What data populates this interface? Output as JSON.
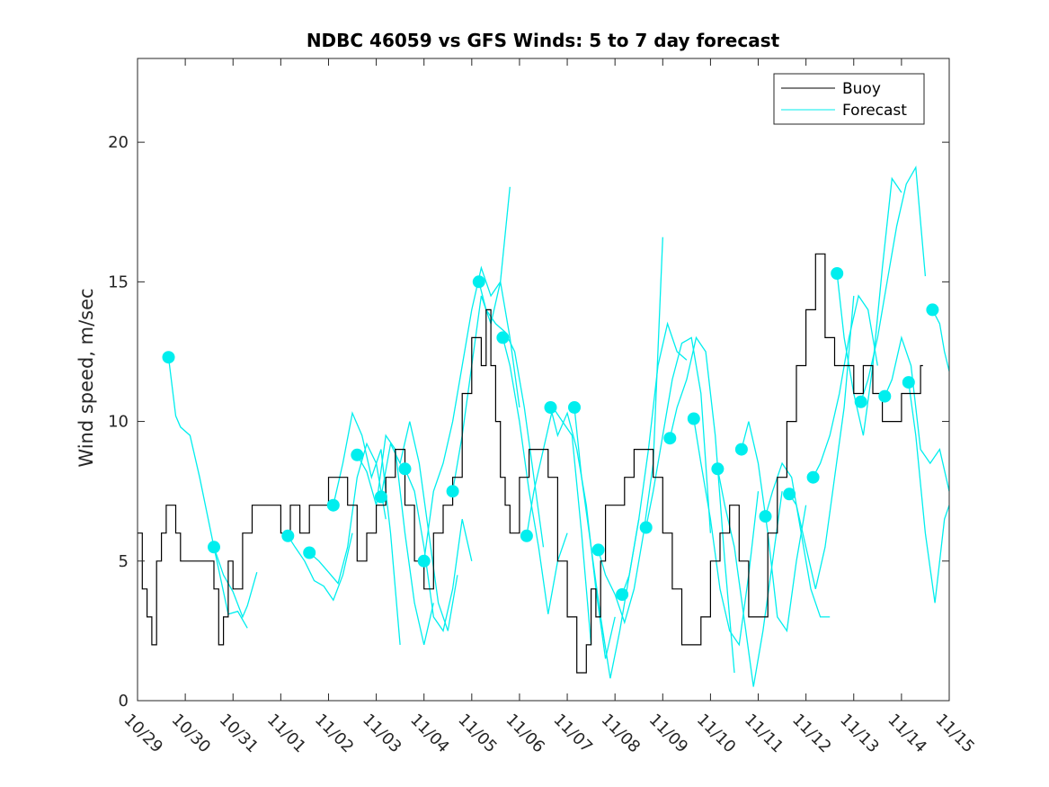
{
  "chart_data": {
    "type": "line",
    "title": "NDBC 46059 vs GFS Winds: 5 to 7 day forecast",
    "xlabel": "",
    "ylabel": "Wind speed, m/sec",
    "xlim": [
      0,
      17
    ],
    "ylim": [
      0,
      23
    ],
    "x_tick_labels": [
      "10/29",
      "10/30",
      "10/31",
      "11/01",
      "11/02",
      "11/03",
      "11/04",
      "11/05",
      "11/06",
      "11/07",
      "11/08",
      "11/09",
      "11/10",
      "11/11",
      "11/12",
      "11/13",
      "11/14",
      "11/15"
    ],
    "y_ticks": [
      0,
      5,
      10,
      15,
      20
    ],
    "legend": [
      "Buoy",
      "Forecast"
    ],
    "legend_position": "top-right",
    "colors": {
      "buoy": "#000000",
      "forecast": "#00eeee",
      "axes": "#262626"
    },
    "buoy": {
      "x": [
        0.0,
        0.1,
        0.2,
        0.3,
        0.4,
        0.5,
        0.6,
        0.7,
        0.8,
        0.9,
        1.0,
        1.2,
        1.4,
        1.6,
        1.7,
        1.8,
        1.9,
        2.0,
        2.2,
        2.4,
        2.6,
        2.8,
        3.0,
        3.2,
        3.4,
        3.6,
        3.8,
        4.0,
        4.2,
        4.4,
        4.6,
        4.8,
        5.0,
        5.2,
        5.4,
        5.6,
        5.8,
        6.0,
        6.2,
        6.4,
        6.6,
        6.8,
        7.0,
        7.2,
        7.3,
        7.4,
        7.5,
        7.6,
        7.7,
        7.8,
        8.0,
        8.2,
        8.4,
        8.6,
        8.8,
        9.0,
        9.2,
        9.4,
        9.5,
        9.6,
        9.7,
        9.8,
        10.0,
        10.2,
        10.4,
        10.6,
        10.8,
        11.0,
        11.2,
        11.4,
        11.6,
        11.8,
        12.0,
        12.2,
        12.4,
        12.6,
        12.8,
        13.0,
        13.2,
        13.4,
        13.6,
        13.8,
        14.0,
        14.2,
        14.4,
        14.6,
        14.8,
        15.0,
        15.2,
        15.4,
        15.6,
        15.8,
        16.0,
        16.2,
        16.4
      ],
      "y": [
        6,
        4,
        3,
        2,
        5,
        6,
        7,
        7,
        6,
        5,
        5,
        5,
        5,
        4,
        2,
        3,
        5,
        4,
        6,
        7,
        7,
        7,
        6,
        7,
        6,
        7,
        7,
        8,
        8,
        7,
        5,
        6,
        7,
        8,
        9,
        7,
        5,
        4,
        6,
        7,
        8,
        11,
        13,
        12,
        14,
        12,
        10,
        8,
        7,
        6,
        8,
        9,
        9,
        8,
        5,
        3,
        1,
        2,
        4,
        3,
        5,
        7,
        7,
        8,
        9,
        9,
        8,
        6,
        4,
        2,
        2,
        3,
        5,
        6,
        7,
        5,
        3,
        3,
        6,
        8,
        10,
        12,
        14,
        16,
        13,
        12,
        12,
        11,
        12,
        11,
        10,
        10,
        11,
        11,
        12
      ]
    },
    "forecasts": [
      {
        "x": [
          0.65,
          0.8,
          0.9,
          1.1,
          1.3,
          1.6,
          1.9,
          2.1,
          2.3
        ],
        "y": [
          12.3,
          10.2,
          9.8,
          9.5,
          8,
          5.5,
          3.1,
          3.2,
          2.6
        ]
      },
      {
        "x": [
          1.6,
          1.8,
          2.0,
          2.2,
          2.3,
          2.5
        ],
        "y": [
          5.5,
          4.5,
          3.9,
          3.0,
          3.4,
          4.6
        ]
      },
      {
        "x": [
          3.15,
          3.3,
          3.5,
          3.7,
          3.9,
          4.1,
          4.3,
          4.5
        ],
        "y": [
          5.9,
          5.5,
          5.0,
          4.3,
          4.1,
          3.6,
          4.5,
          6.0
        ]
      },
      {
        "x": [
          3.6,
          3.8,
          4.0,
          4.2,
          4.4,
          4.6,
          4.8,
          5.0,
          5.2
        ],
        "y": [
          5.3,
          5.0,
          4.6,
          4.2,
          5.5,
          8.0,
          9.2,
          8.5,
          6.5
        ]
      },
      {
        "x": [
          4.1,
          4.3,
          4.5,
          4.7,
          4.9,
          5.1,
          5.3,
          5.5
        ],
        "y": [
          7.0,
          8.5,
          10.3,
          9.5,
          8.0,
          9.0,
          6.0,
          2.0
        ]
      },
      {
        "x": [
          4.6,
          4.8,
          5.0,
          5.2,
          5.4,
          5.6,
          5.8,
          6.0,
          6.2
        ],
        "y": [
          8.8,
          8.2,
          7.0,
          9.5,
          9.0,
          6.0,
          3.5,
          2.0,
          3.5
        ]
      },
      {
        "x": [
          5.1,
          5.3,
          5.5,
          5.7,
          5.9,
          6.1,
          6.3,
          6.5,
          6.7
        ],
        "y": [
          7.3,
          9.2,
          8.5,
          10.0,
          8.5,
          6.0,
          3.5,
          2.5,
          4.5
        ]
      },
      {
        "x": [
          5.6,
          5.8,
          6.0,
          6.2,
          6.4,
          6.6,
          6.8,
          7.0
        ],
        "y": [
          8.3,
          7.5,
          5.5,
          3.0,
          2.5,
          4.0,
          6.5,
          5.0
        ]
      },
      {
        "x": [
          6.0,
          6.2,
          6.4,
          6.6,
          6.8,
          7.0,
          7.2,
          7.4,
          7.6,
          7.8
        ],
        "y": [
          5.0,
          7.5,
          8.5,
          10.0,
          12.0,
          14.0,
          15.5,
          14.5,
          15.0,
          18.4
        ]
      },
      {
        "x": [
          6.6,
          6.8,
          7.0,
          7.2,
          7.4,
          7.6,
          7.8,
          8.0
        ],
        "y": [
          7.5,
          9.5,
          12.0,
          14.5,
          13.5,
          15.0,
          13.0,
          10.5
        ]
      },
      {
        "x": [
          7.15,
          7.3,
          7.5,
          7.7,
          7.9,
          8.1,
          8.3,
          8.5
        ],
        "y": [
          15.0,
          14.0,
          13.5,
          13.2,
          12.5,
          10.5,
          8.0,
          5.5
        ]
      },
      {
        "x": [
          7.65,
          7.8,
          8.0,
          8.2,
          8.4,
          8.6,
          8.8,
          9.0
        ],
        "y": [
          13.0,
          12.0,
          10.0,
          7.5,
          5.5,
          3.1,
          5.0,
          6.0
        ]
      },
      {
        "x": [
          8.15,
          8.3,
          8.5,
          8.7,
          8.9,
          9.1,
          9.3,
          9.5
        ],
        "y": [
          5.9,
          7.5,
          9.0,
          10.5,
          10.0,
          9.5,
          6.0,
          2.0
        ]
      },
      {
        "x": [
          8.65,
          8.8,
          9.0,
          9.2,
          9.4,
          9.6,
          9.8,
          10.0
        ],
        "y": [
          10.5,
          9.5,
          10.3,
          9.0,
          7.0,
          4.0,
          1.5,
          3.0
        ]
      },
      {
        "x": [
          9.15,
          9.3,
          9.5,
          9.7,
          9.9,
          10.1,
          10.3,
          10.5
        ],
        "y": [
          10.5,
          8.0,
          5.5,
          3.0,
          0.8,
          2.5,
          4.5,
          6.5
        ]
      },
      {
        "x": [
          9.65,
          9.8,
          10.0,
          10.2,
          10.4,
          10.6,
          10.8,
          11.0
        ],
        "y": [
          5.4,
          4.5,
          3.8,
          2.8,
          4.0,
          6.0,
          8.5,
          16.6
        ]
      },
      {
        "x": [
          10.15,
          10.3,
          10.5,
          10.7,
          10.9,
          11.1,
          11.3,
          11.5
        ],
        "y": [
          3.8,
          4.5,
          6.5,
          9.0,
          12.0,
          13.5,
          12.5,
          12.2
        ]
      },
      {
        "x": [
          10.65,
          10.8,
          11.0,
          11.2,
          11.4,
          11.6,
          11.8,
          12.0
        ],
        "y": [
          6.2,
          7.5,
          9.5,
          11.5,
          12.8,
          13.0,
          11.0,
          6.0
        ]
      },
      {
        "x": [
          11.15,
          11.3,
          11.5,
          11.7,
          11.9,
          12.1,
          12.3,
          12.5
        ],
        "y": [
          9.4,
          10.5,
          11.5,
          13.0,
          12.5,
          9.5,
          5.0,
          1.0
        ]
      },
      {
        "x": [
          11.65,
          11.8,
          12.0,
          12.2,
          12.4,
          12.6,
          12.8,
          13.0
        ],
        "y": [
          10.1,
          8.5,
          6.5,
          4.0,
          2.5,
          2.0,
          4.5,
          7.5
        ]
      },
      {
        "x": [
          12.15,
          12.3,
          12.5,
          12.7,
          12.9,
          13.1,
          13.3,
          13.5
        ],
        "y": [
          8.3,
          7.0,
          5.5,
          3.0,
          0.5,
          2.5,
          5.0,
          7.5
        ]
      },
      {
        "x": [
          12.65,
          12.8,
          13.0,
          13.2,
          13.4,
          13.6,
          13.8,
          14.0
        ],
        "y": [
          9.0,
          10.0,
          8.5,
          6.0,
          3.0,
          2.5,
          5.0,
          7.0
        ]
      },
      {
        "x": [
          13.15,
          13.3,
          13.5,
          13.7,
          13.9,
          14.1,
          14.3,
          14.5
        ],
        "y": [
          6.6,
          7.5,
          8.5,
          8.0,
          6.0,
          4.0,
          3.0,
          3.0
        ]
      },
      {
        "x": [
          13.65,
          13.8,
          14.0,
          14.2,
          14.4,
          14.6,
          14.8,
          15.0
        ],
        "y": [
          7.4,
          7.0,
          5.5,
          4.0,
          5.5,
          8.0,
          10.5,
          14.5
        ]
      },
      {
        "x": [
          14.15,
          14.3,
          14.5,
          14.7,
          14.9,
          15.1,
          15.3,
          15.5
        ],
        "y": [
          8.0,
          8.5,
          9.5,
          11.0,
          13.0,
          14.5,
          14.0,
          12.0
        ]
      },
      {
        "x": [
          14.65,
          14.8,
          15.0,
          15.2,
          15.4,
          15.6,
          15.8,
          16.0
        ],
        "y": [
          15.3,
          13.0,
          11.0,
          9.5,
          12.0,
          15.5,
          18.7,
          18.2
        ]
      },
      {
        "x": [
          15.15,
          15.3,
          15.5,
          15.7,
          15.9,
          16.1,
          16.3,
          16.5
        ],
        "y": [
          10.7,
          11.5,
          13.0,
          15.0,
          17.0,
          18.5,
          19.1,
          15.2
        ]
      },
      {
        "x": [
          15.65,
          15.8,
          16.0,
          16.2,
          16.4,
          16.6,
          16.8,
          17.0
        ],
        "y": [
          10.9,
          11.5,
          13.0,
          12.0,
          9.0,
          8.5,
          9.0,
          7.5
        ]
      },
      {
        "x": [
          16.15,
          16.3,
          16.5,
          16.7,
          16.9,
          17.0
        ],
        "y": [
          11.4,
          9.5,
          6.0,
          3.5,
          6.5,
          7.0
        ]
      },
      {
        "x": [
          16.65,
          16.8,
          16.9,
          17.0
        ],
        "y": [
          14.0,
          13.5,
          12.5,
          11.8
        ]
      }
    ]
  }
}
